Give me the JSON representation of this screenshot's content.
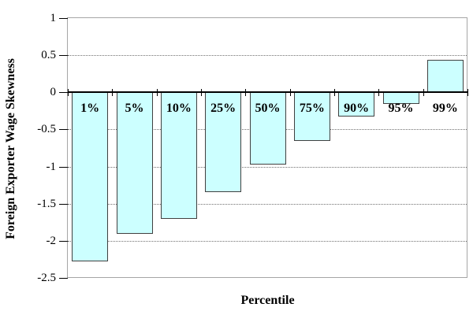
{
  "chart_data": {
    "type": "bar",
    "title": "",
    "xlabel": "Percentile",
    "ylabel": "Foreign Exporter Wage Skewness",
    "categories": [
      "1%",
      "5%",
      "10%",
      "25%",
      "50%",
      "75%",
      "90%",
      "95%",
      "99%"
    ],
    "values": [
      -2.28,
      -1.91,
      -1.7,
      -1.34,
      -0.97,
      -0.65,
      -0.33,
      -0.16,
      0.44
    ],
    "ylim": [
      -2.5,
      1
    ],
    "yticks": [
      1,
      0.5,
      0,
      -0.5,
      -1,
      -1.5,
      -2,
      -2.5
    ],
    "ytick_labels": [
      "1",
      "0.5",
      "0",
      "-0.5",
      "-1",
      "-1.5",
      "-2",
      "-2.5"
    ],
    "grid": "horizontal-dotted",
    "legend_position": "none",
    "colors": {
      "bar_fill": "#CCFFFF",
      "bar_border": "#404040",
      "gridline": "#707070",
      "zero_line": "#000000",
      "plot_border": "#A6A6A6",
      "text": "#000000",
      "background": "#FFFFFF"
    }
  }
}
